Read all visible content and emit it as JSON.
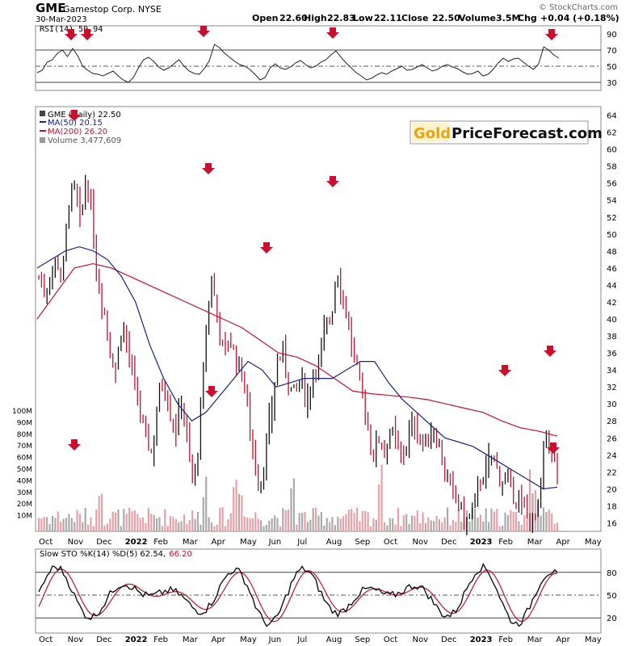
{
  "header": {
    "symbol": "GME",
    "company": "Gamestop Corp.  NYSE",
    "date": "30-Mar-2023",
    "source": "© StockCharts.com",
    "open_label": "Open",
    "open": "22.60",
    "high_label": "High",
    "high": "22.83",
    "low_label": "Low",
    "low": "22.11",
    "close_label": "Close",
    "close": "22.50",
    "volume_label": "Volume",
    "volume": "3.5M",
    "chg_label": "Chg",
    "chg": "+0.04 (+0.18%)"
  },
  "logo": {
    "gold": "Gold",
    "rest": "PriceForecast.com"
  },
  "rsi": {
    "label": "RSI(14) 59.94",
    "ticks": [
      90,
      70,
      50,
      30
    ],
    "upper": 70,
    "lower": 30,
    "mid": 50,
    "values": [
      42,
      45,
      55,
      58,
      66,
      70,
      62,
      72,
      63,
      50,
      45,
      41,
      40,
      38,
      41,
      44,
      38,
      33,
      30,
      36,
      48,
      58,
      61,
      56,
      49,
      45,
      48,
      53,
      58,
      50,
      44,
      41,
      40,
      47,
      57,
      77,
      73,
      66,
      61,
      56,
      52,
      50,
      46,
      40,
      33,
      36,
      48,
      53,
      48,
      46,
      49,
      54,
      57,
      52,
      48,
      50,
      55,
      58,
      64,
      69,
      61,
      54,
      48,
      42,
      38,
      33,
      35,
      39,
      42,
      40,
      44,
      47,
      50,
      45,
      46,
      49,
      52,
      48,
      44,
      46,
      50,
      52,
      49,
      47,
      43,
      40,
      41,
      44,
      38,
      40,
      46,
      54,
      60,
      56,
      59,
      60,
      55,
      50,
      46,
      53,
      74,
      70,
      64,
      60
    ]
  },
  "price": {
    "legend_main": "GME (Daily) 22.50",
    "legend_ma50": "MA(50) 20.15",
    "legend_ma200": "MA(200) 26.20",
    "legend_volume": "Volume 3,477,609",
    "ticks": [
      64,
      62,
      60,
      58,
      56,
      54,
      52,
      50,
      48,
      46,
      44,
      42,
      40,
      38,
      36,
      34,
      32,
      30,
      28,
      26,
      24,
      22,
      20,
      18,
      16
    ],
    "volume_ticks": [
      "100M",
      "90M",
      "80M",
      "70M",
      "60M",
      "50M",
      "40M",
      "30M",
      "20M",
      "10M"
    ]
  },
  "sto": {
    "label_prefix": "Slow STO %K(14) %D(5) 62.54,",
    "label_d": "66.20",
    "ticks": [
      80,
      50,
      20
    ],
    "upper": 80,
    "lower": 20,
    "mid": 50
  },
  "x_labels": [
    "Oct",
    "Nov",
    "Dec",
    "2022",
    "Feb",
    "Mar",
    "Apr",
    "May",
    "Jun",
    "Jul",
    "Aug",
    "Sep",
    "Oct",
    "Nov",
    "Dec",
    "2023",
    "Feb",
    "Mar",
    "Apr",
    "May"
  ],
  "x_bold": [
    "2022",
    "2023"
  ],
  "chart_data": {
    "type": "line",
    "title": "GME Gamestop Corp. NYSE",
    "x": [
      "Oct",
      "Nov",
      "Dec",
      "2022",
      "Feb",
      "Mar",
      "Apr",
      "May",
      "Jun",
      "Jul",
      "Aug",
      "Sep",
      "Oct",
      "Nov",
      "Dec",
      "2023",
      "Feb",
      "Mar",
      "Apr",
      "May"
    ],
    "ylim": [
      15,
      65
    ],
    "price_path": [
      [
        "Oct",
        45
      ],
      [
        "Oct",
        43
      ],
      [
        "Oct",
        45.5
      ],
      [
        "Oct",
        47
      ],
      [
        "Oct",
        45
      ],
      [
        "Nov",
        54
      ],
      [
        "Nov",
        55
      ],
      [
        "Nov",
        51
      ],
      [
        "Nov",
        57
      ],
      [
        "Nov",
        51
      ],
      [
        "Dec",
        44
      ],
      [
        "Dec",
        41
      ],
      [
        "Dec",
        36
      ],
      [
        "Dec",
        34
      ],
      [
        "Dec",
        40
      ],
      [
        "Dec",
        36
      ],
      [
        "2022",
        32
      ],
      [
        "2022",
        29
      ],
      [
        "2022",
        26
      ],
      [
        "2022",
        24
      ],
      [
        "2022",
        31
      ],
      [
        "Feb",
        33
      ],
      [
        "Feb",
        29
      ],
      [
        "Feb",
        27
      ],
      [
        "Feb",
        31
      ],
      [
        "Mar",
        25
      ],
      [
        "Mar",
        20
      ],
      [
        "Mar",
        27
      ],
      [
        "Mar",
        38
      ],
      [
        "Mar",
        45
      ],
      [
        "Apr",
        40
      ],
      [
        "Apr",
        36
      ],
      [
        "Apr",
        38
      ],
      [
        "Apr",
        35
      ],
      [
        "Apr",
        34
      ],
      [
        "May",
        30
      ],
      [
        "May",
        24
      ],
      [
        "May",
        20
      ],
      [
        "May",
        24
      ],
      [
        "May",
        29
      ],
      [
        "Jun",
        35
      ],
      [
        "Jun",
        36
      ],
      [
        "Jun",
        32
      ],
      [
        "Jun",
        31
      ],
      [
        "Jul",
        33
      ],
      [
        "Jul",
        30
      ],
      [
        "Jul",
        34
      ],
      [
        "Jul",
        35
      ],
      [
        "Jul",
        39
      ],
      [
        "Aug",
        40
      ],
      [
        "Aug",
        46
      ],
      [
        "Aug",
        43
      ],
      [
        "Aug",
        39
      ],
      [
        "Aug",
        35
      ],
      [
        "Aug",
        32
      ],
      [
        "Sep",
        28
      ],
      [
        "Sep",
        24
      ],
      [
        "Sep",
        26
      ],
      [
        "Sep",
        25
      ],
      [
        "Oct",
        27
      ],
      [
        "Oct",
        25
      ],
      [
        "Oct",
        24
      ],
      [
        "Oct",
        26
      ],
      [
        "Nov",
        28
      ],
      [
        "Nov",
        26
      ],
      [
        "Nov",
        25
      ],
      [
        "Nov",
        27
      ],
      [
        "Nov",
        26
      ],
      [
        "Dec",
        22
      ],
      [
        "Dec",
        20
      ],
      [
        "Dec",
        19
      ],
      [
        "Dec",
        17
      ],
      [
        "Dec",
        16
      ],
      [
        "2023",
        18
      ],
      [
        "2023",
        21
      ],
      [
        "2023",
        22
      ],
      [
        "Feb",
        24
      ],
      [
        "Feb",
        22
      ],
      [
        "Feb",
        21
      ],
      [
        "Feb",
        20
      ],
      [
        "Mar",
        19
      ],
      [
        "Mar",
        18
      ],
      [
        "Mar",
        17
      ],
      [
        "Mar",
        16
      ],
      [
        "Mar",
        18
      ],
      [
        "Mar",
        27
      ],
      [
        "Mar",
        24
      ],
      [
        "Mar",
        22.5
      ]
    ],
    "ma50": [
      46,
      47,
      48,
      48.5,
      48,
      47,
      45,
      42,
      37,
      33,
      30,
      28,
      29,
      31,
      33,
      35,
      34,
      32,
      32.5,
      33,
      33,
      33,
      34,
      35,
      35,
      32.5,
      30.5,
      29,
      27.5,
      26,
      25.5,
      25,
      24,
      23,
      22,
      21,
      20,
      20.2
    ],
    "ma200": [
      40,
      43,
      46,
      46.5,
      46,
      45,
      44,
      43,
      42,
      41,
      40,
      39,
      37.5,
      36,
      35.5,
      34.5,
      33,
      31.5,
      31.2,
      31,
      30.8,
      30.5,
      30,
      29.5,
      29,
      28,
      27.2,
      26.8,
      26.2
    ],
    "rsi": {
      "upper": 70,
      "lower": 30,
      "ylim": [
        20,
        100
      ]
    },
    "sto": {
      "upper": 80,
      "lower": 20,
      "ylim": [
        0,
        100
      ]
    }
  }
}
